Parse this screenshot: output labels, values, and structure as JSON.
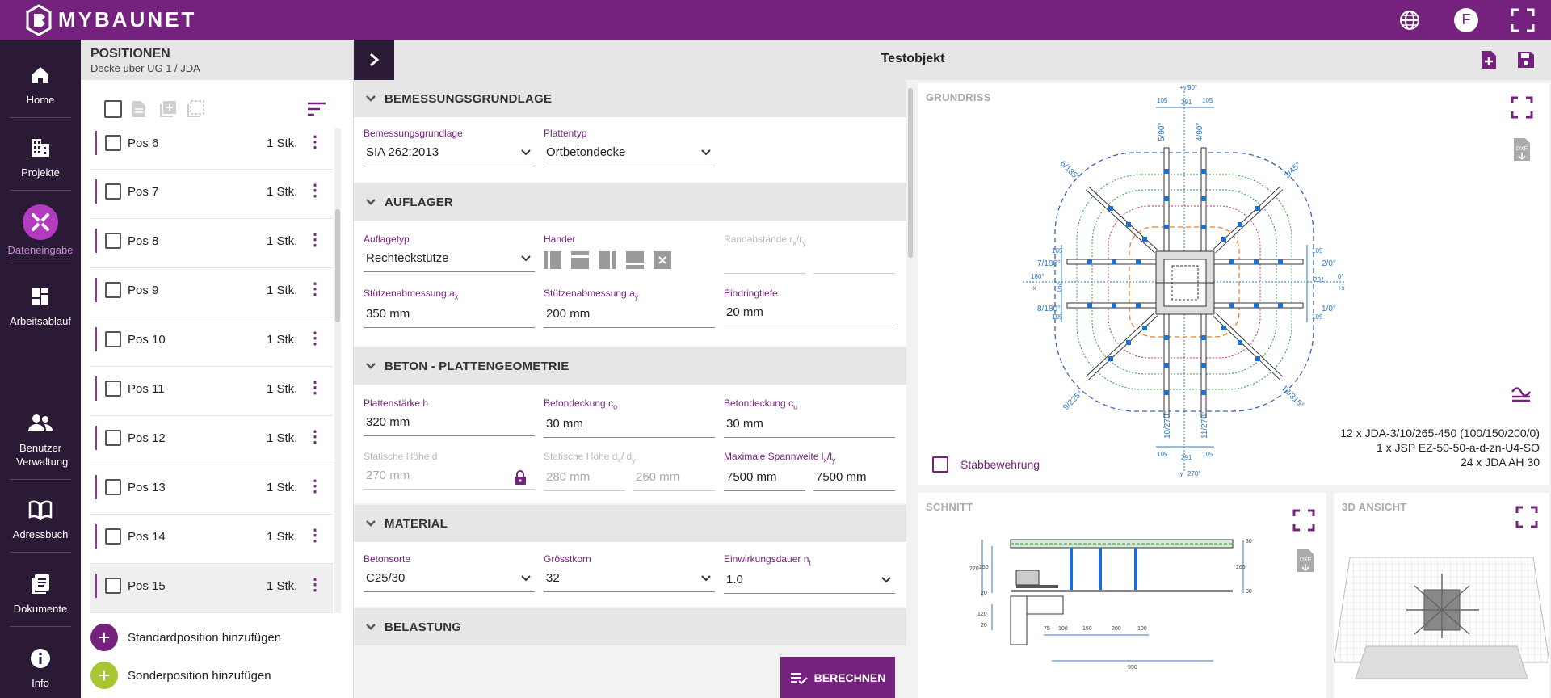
{
  "app": {
    "logo_text": "MYBAUNET",
    "avatar_initial": "F"
  },
  "nav": {
    "items": [
      {
        "label": "Home",
        "icon": "home-icon"
      },
      {
        "label": "Projekte",
        "icon": "building-icon"
      },
      {
        "label": "Dateneingabe",
        "icon": "tools-icon"
      },
      {
        "label": "Arbeitsablauf",
        "icon": "dashboard-icon"
      },
      {
        "label": "Benutzer Verwaltung",
        "icon": "users-icon"
      },
      {
        "label": "Adressbuch",
        "icon": "book-icon"
      },
      {
        "label": "Dokumente",
        "icon": "documents-icon"
      },
      {
        "label": "Info",
        "icon": "info-icon"
      }
    ]
  },
  "positions": {
    "title": "POSITIONEN",
    "subtitle": "Decke über UG 1 / JDA",
    "items": [
      {
        "name": "Pos 6",
        "qty": "1 Stk."
      },
      {
        "name": "Pos 7",
        "qty": "1 Stk."
      },
      {
        "name": "Pos 8",
        "qty": "1 Stk."
      },
      {
        "name": "Pos 9",
        "qty": "1 Stk."
      },
      {
        "name": "Pos 10",
        "qty": "1 Stk."
      },
      {
        "name": "Pos 11",
        "qty": "1 Stk."
      },
      {
        "name": "Pos 12",
        "qty": "1 Stk."
      },
      {
        "name": "Pos 13",
        "qty": "1 Stk."
      },
      {
        "name": "Pos 14",
        "qty": "1 Stk."
      },
      {
        "name": "Pos 15",
        "qty": "1 Stk."
      }
    ],
    "add_standard": "Standardposition hinzufügen",
    "add_special": "Sonderposition hinzufügen"
  },
  "project": {
    "title": "Testobjekt"
  },
  "sections": {
    "bemessung": {
      "title": "BEMESSUNGSGRUNDLAGE",
      "f1_label": "Bemessungsgrundlage",
      "f1_value": "SIA 262:2013",
      "f2_label": "Plattentyp",
      "f2_value": "Ortbetondecke"
    },
    "auflager": {
      "title": "AUFLAGER",
      "typ_label": "Auflagetyp",
      "typ_value": "Rechteckstütze",
      "hander_label": "Hander",
      "rand_label_main": "Randabstände r",
      "rand_sub1": "x",
      "rand_sep": "/r",
      "rand_sub2": "y",
      "ax_label_main": "Stützenabmessung a",
      "ax_label_sub": "x",
      "ax_value": "350 mm",
      "ay_label_main": "Stützenabmessung a",
      "ay_label_sub": "y",
      "ay_value": "200 mm",
      "eind_label": "Eindringtiefe",
      "eind_value": "20 mm"
    },
    "beton": {
      "title": "BETON - PLATTENGEOMETRIE",
      "h_label": "Plattenstärke h",
      "h_value": "320 mm",
      "co_label_main": "Betondeckung c",
      "co_label_sub": "o",
      "co_value": "30 mm",
      "cu_label_main": "Betondeckung c",
      "cu_label_sub": "u",
      "cu_value": "30 mm",
      "d_label": "Statische Höhe d",
      "d_value": "270 mm",
      "dxdy_label_main": "Statische Höhe d",
      "dxdy_sub1": "x",
      "dxdy_sep": "/ d",
      "dxdy_sub2": "y",
      "dx_value": "280 mm",
      "dy_value": "260 mm",
      "span_label_main": "Maximale Spannweite l",
      "span_sub1": "x",
      "span_sep": "/l",
      "span_sub2": "y",
      "lx_value": "7500 mm",
      "ly_value": "7500 mm"
    },
    "material": {
      "title": "MATERIAL",
      "sorte_label": "Betonsorte",
      "sorte_value": "C25/30",
      "korn_label": "Grösstkorn",
      "korn_value": "32",
      "dauer_label_main": "Einwirkungsdauer n",
      "dauer_label_sub": "t",
      "dauer_value": "1.0"
    },
    "belastung": {
      "title": "BELASTUNG"
    }
  },
  "calc_button": "BERECHNEN",
  "grundriss": {
    "title": "GRUNDRISS",
    "checkbox_label": "Stabbewehrung",
    "info": [
      "12 x JDA-3/10/265-450 (100/150/200/0)",
      "1 x JSP EZ-50-50-a-d-zn-U4-SO",
      "24 x JDA AH 30"
    ],
    "angle_labels": {
      "a90": "5/90°",
      "a90b": "4/90°",
      "a135": "6/135°",
      "a45": "3/45°",
      "a180a": "7/180°",
      "a180b": "8/180°",
      "a0a": "2/0°",
      "a0b": "1/0°",
      "a225": "9/225°",
      "a315": "12/315°",
      "a270a": "10/270°",
      "a270b": "11/270°"
    },
    "dims": {
      "d105": "105",
      "d291": "291",
      "deg90": "90°",
      "deg180": "180°",
      "deg0": "0°",
      "deg270": "270°",
      "py": "+y",
      "my": "-y",
      "px": "+x",
      "mx": "-x"
    }
  },
  "schnitt": {
    "title": "SCHNITT",
    "dims": {
      "d270": "270",
      "d250": "250",
      "d20a": "20",
      "d120": "120",
      "d20b": "20",
      "d30a": "30",
      "d265": "265",
      "d30b": "30",
      "d75": "75",
      "d100a": "100",
      "d150": "150",
      "d200": "200",
      "d100b": "100",
      "d550": "550"
    }
  },
  "ansicht": {
    "title": "3D ANSICHT"
  },
  "colors": {
    "brand": "#75217e",
    "nav_bg": "#2b1a36",
    "accent_green": "#a8c634",
    "dim_blue": "#2a78c8"
  }
}
